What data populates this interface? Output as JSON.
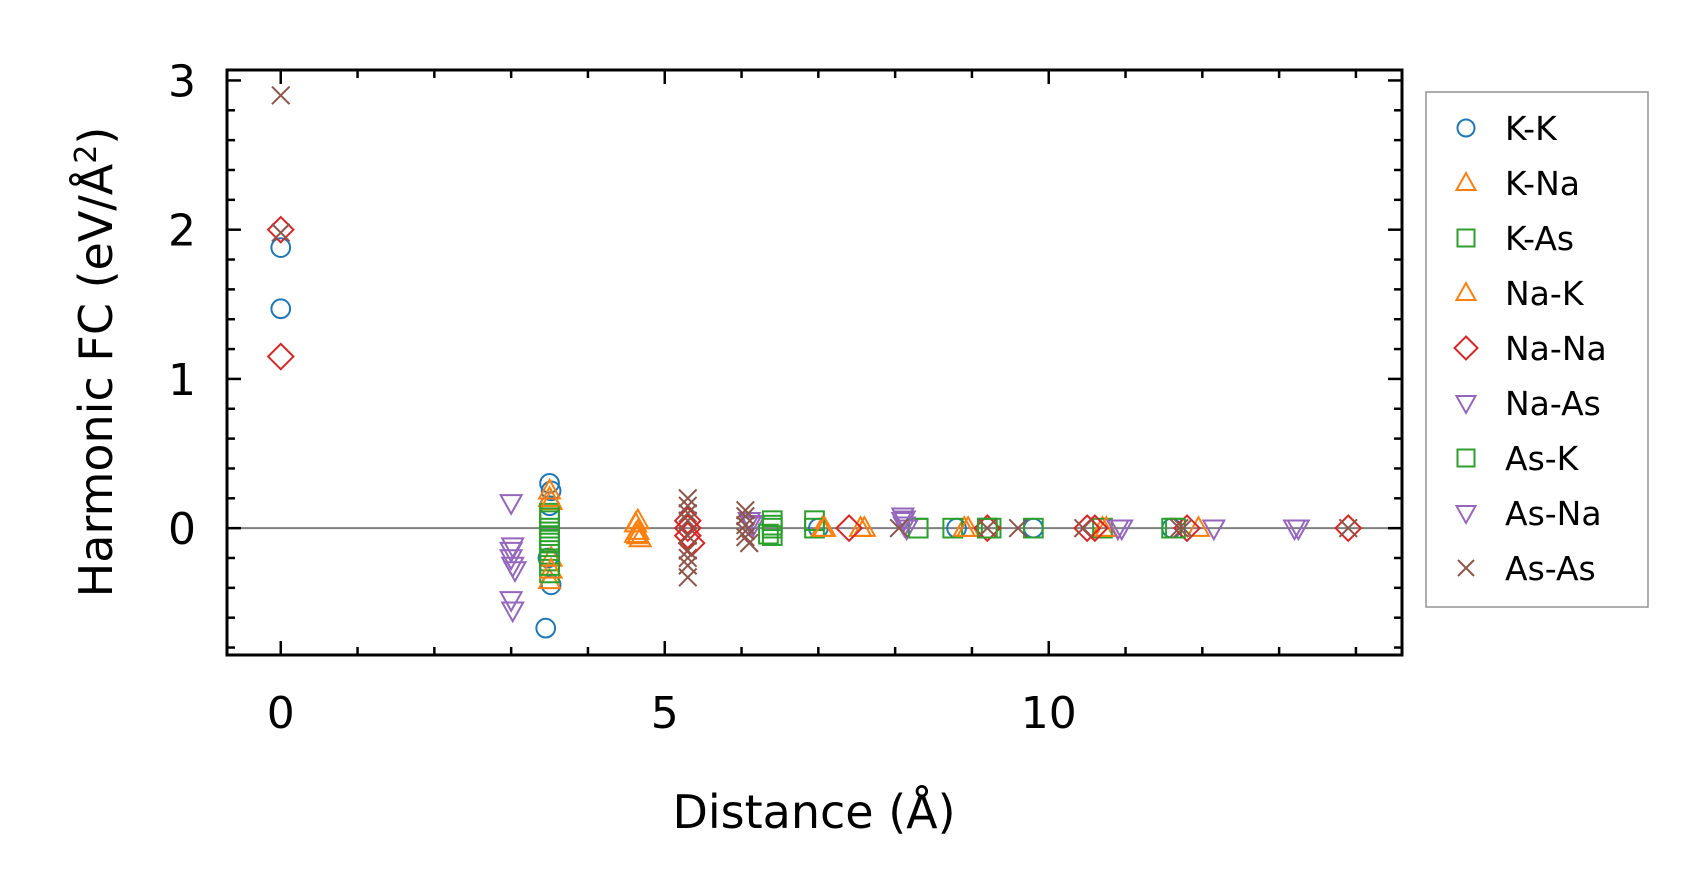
{
  "chart_data": {
    "type": "scatter",
    "xlabel": "Distance (Å)",
    "ylabel_main": "Harmonic FC (eV/Å",
    "ylabel_sup": "2",
    "ylabel_end": ")",
    "xlim": [
      -0.7,
      14.6
    ],
    "ylim": [
      -0.85,
      3.07
    ],
    "xticks": [
      0,
      5,
      10
    ],
    "yticks": [
      0,
      1,
      2,
      3
    ],
    "xticks_minor": [
      0,
      1,
      2,
      3,
      4,
      5,
      6,
      7,
      8,
      9,
      10,
      11,
      12,
      13,
      14
    ],
    "yticks_minor": [
      -0.8,
      -0.6,
      -0.4,
      -0.2,
      0,
      0.2,
      0.4,
      0.6,
      0.8,
      1.0,
      1.2,
      1.4,
      1.6,
      1.8,
      2.0,
      2.2,
      2.4,
      2.6,
      2.8,
      3.0
    ],
    "zero_line": 0,
    "legend_position": "outside-right",
    "series": [
      {
        "name": "K-K",
        "marker": "circle",
        "color": "#1f77b4",
        "x": [
          0,
          0,
          3.45,
          3.5,
          3.52,
          3.5,
          3.48,
          3.52,
          7.0,
          8.8,
          9.8,
          11.6
        ],
        "y": [
          1.88,
          1.47,
          -0.67,
          0.3,
          0.25,
          0.15,
          -0.2,
          -0.38,
          0,
          0,
          0,
          0
        ]
      },
      {
        "name": "K-Na",
        "marker": "triangle-up",
        "color": "#ff7f0e",
        "x": [
          3.5,
          3.5,
          3.52,
          3.5,
          4.65,
          4.65,
          4.65,
          7.05,
          7.55,
          8.9,
          10.7
        ],
        "y": [
          0.25,
          0.2,
          -0.2,
          -0.35,
          0.05,
          -0.02,
          -0.05,
          0,
          0,
          0,
          0
        ]
      },
      {
        "name": "K-As",
        "marker": "square",
        "color": "#2ca02c",
        "x": [
          3.5,
          3.5,
          3.5,
          3.5,
          3.5,
          3.5,
          3.5,
          3.5,
          6.4,
          6.4,
          6.4,
          6.95,
          6.95,
          8.3,
          8.75,
          9.2,
          9.25,
          9.8,
          10.7,
          11.6
        ],
        "y": [
          0.1,
          0.05,
          0.0,
          -0.05,
          -0.1,
          -0.15,
          -0.22,
          -0.3,
          0.05,
          0,
          -0.05,
          0.05,
          0,
          0,
          0,
          0,
          0,
          0,
          0,
          0
        ]
      },
      {
        "name": "Na-K",
        "marker": "triangle-up",
        "color": "#ff7f0e",
        "x": [
          3.52,
          3.52,
          4.62,
          4.62,
          4.68,
          7.08,
          7.6,
          8.95,
          10.75,
          11.95
        ],
        "y": [
          0.18,
          -0.28,
          0.03,
          -0.04,
          -0.07,
          0,
          0,
          0,
          0,
          0
        ]
      },
      {
        "name": "Na-Na",
        "marker": "diamond",
        "color": "#d62728",
        "x": [
          0,
          0,
          5.3,
          5.3,
          5.3,
          5.35,
          7.4,
          9.2,
          10.5,
          10.6,
          11.8,
          13.9
        ],
        "y": [
          2.0,
          1.15,
          0.05,
          0,
          -0.05,
          -0.1,
          0,
          0,
          0,
          0,
          0,
          0
        ]
      },
      {
        "name": "Na-As",
        "marker": "triangle-down",
        "color": "#9467bd",
        "x": [
          3.0,
          3.0,
          3.0,
          3.05,
          3.0,
          6.1,
          6.15,
          8.1,
          8.1,
          8.15,
          10.9,
          12.15,
          13.2
        ],
        "y": [
          0.17,
          -0.15,
          -0.2,
          -0.28,
          -0.48,
          0.05,
          0.02,
          0.08,
          0.05,
          0.0,
          0,
          0,
          0
        ]
      },
      {
        "name": "As-K",
        "marker": "square",
        "color": "#2ca02c",
        "x": [
          3.5,
          3.5,
          3.5,
          6.4,
          6.35,
          8.3,
          9.2,
          11.65
        ],
        "y": [
          0.07,
          -0.08,
          -0.25,
          0.02,
          -0.04,
          0,
          0,
          0
        ]
      },
      {
        "name": "As-Na",
        "marker": "triangle-down",
        "color": "#9467bd",
        "x": [
          3.02,
          3.02,
          3.02,
          6.12,
          8.12,
          8.12,
          10.95,
          13.25
        ],
        "y": [
          -0.12,
          -0.25,
          -0.55,
          0.03,
          0.06,
          0.02,
          0,
          0
        ]
      },
      {
        "name": "As-As",
        "marker": "x",
        "color": "#8c564b",
        "x": [
          0,
          0,
          5.3,
          5.3,
          5.3,
          5.3,
          5.3,
          5.3,
          5.3,
          5.3,
          5.3,
          6.05,
          6.05,
          6.05,
          6.05,
          6.05,
          6.1,
          8.05,
          9.2,
          9.6,
          10.45,
          11.7,
          11.75,
          13.9
        ],
        "y": [
          2.9,
          1.98,
          0.2,
          0.15,
          0.1,
          0.05,
          -0.05,
          -0.15,
          -0.2,
          -0.25,
          -0.33,
          0.12,
          0.08,
          0.02,
          -0.02,
          -0.06,
          -0.1,
          0,
          0,
          0,
          0,
          0,
          0,
          0
        ]
      }
    ]
  }
}
